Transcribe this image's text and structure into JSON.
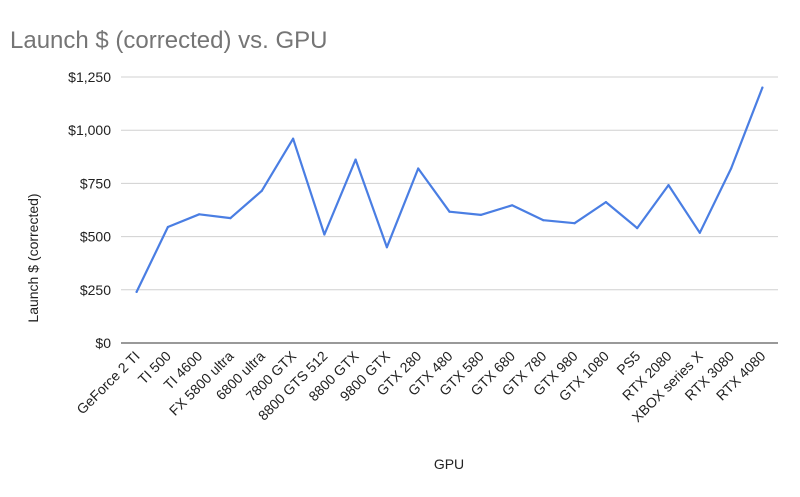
{
  "chart_data": {
    "type": "line",
    "title": "Launch $ (corrected) vs. GPU",
    "xlabel": "GPU",
    "ylabel": "Launch $ (corrected)",
    "ylim": [
      0,
      1250
    ],
    "y_ticks": [
      0,
      250,
      500,
      750,
      1000,
      1250
    ],
    "y_tick_labels": [
      "$0",
      "$250",
      "$500",
      "$750",
      "$1,000",
      "$1,250"
    ],
    "grid": true,
    "legend": "none",
    "categories": [
      "GeForce 2 TI",
      "TI 500",
      "TI 4600",
      "FX 5800 ultra",
      "6800 ultra",
      "7800 GTX",
      "8800 GTS 512",
      "8800 GTX",
      "9800 GTX",
      "GTX 280",
      "GTX 480",
      "GTX 580",
      "GTX 680",
      "GTX 780",
      "GTX 980",
      "GTX 1080",
      "PS5",
      "RTX 2080",
      "XBOX series X",
      "RTX 3080",
      "RTX 4080"
    ],
    "series": [
      {
        "values": [
          240,
          545,
          605,
          587,
          715,
          960,
          510,
          862,
          450,
          820,
          617,
          602,
          647,
          577,
          563,
          662,
          540,
          742,
          518,
          820,
          1200
        ],
        "color": "#4a7ee3"
      }
    ]
  }
}
